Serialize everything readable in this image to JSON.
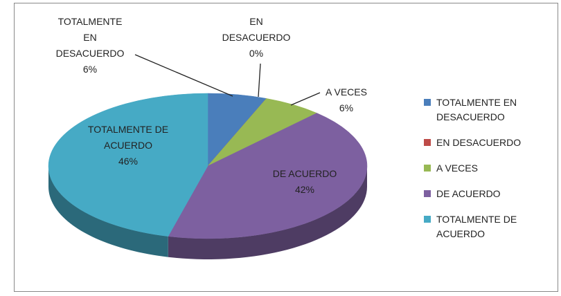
{
  "chart_data": {
    "type": "pie3d",
    "categories": [
      "TOTALMENTE EN DESACUERDO",
      "EN DESACUERDO",
      "A VECES",
      "DE ACUERDO",
      "TOTALMENTE DE ACUERDO"
    ],
    "values": [
      6,
      0,
      6,
      42,
      46
    ],
    "value_labels": [
      "6%",
      "0%",
      "6%",
      "42%",
      "46%"
    ],
    "colors": [
      "#4a7ebb",
      "#be4b48",
      "#98b954",
      "#7d60a0",
      "#46aac5"
    ],
    "legend": "right"
  }
}
